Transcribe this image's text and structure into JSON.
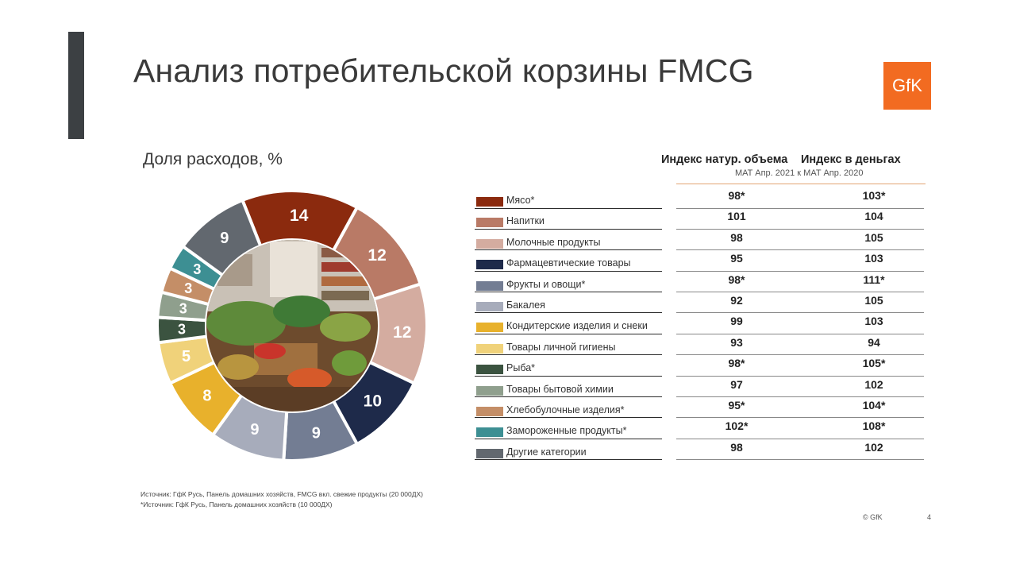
{
  "slide": {
    "title": "Анализ потребительской корзины FMCG",
    "logo_text": "GfK",
    "subtitle": "Доля расходов, %",
    "source_line1": "Источник: ГфК Русь, Панель домашних хозяйств, FMCG вкл. свежие продукты (20 000ДХ)",
    "source_line2": "*Источник: ГфК Русь, Панель домашних хозяйств (10 000ДХ)",
    "copyright": "© GfK",
    "page_number": "4",
    "accent_color": "#3c4043",
    "logo_color": "#f26b21"
  },
  "table_header": {
    "col1": "Индекс натур. объема",
    "col2": "Индекс в деньгах",
    "period": "MAT Апр. 2021 к MAT Апр. 2020"
  },
  "chart_data": {
    "type": "pie",
    "style": "donut",
    "title": "Доля расходов, %",
    "center_image": "photo-of-vegetables-and-grocery-shelves",
    "categories": [
      "Мясо*",
      "Напитки",
      "Молочные продукты",
      "Фармацевтические товары",
      "Фрукты и овощи*",
      "Бакалея",
      "Кондитерские изделия и снеки",
      "Товары личной гигиены",
      "Рыба*",
      "Товары бытовой химии",
      "Хлебобулочные изделия*",
      "Замороженные продукты*",
      "Другие категории"
    ],
    "values": [
      14,
      12,
      12,
      10,
      9,
      9,
      8,
      5,
      3,
      3,
      3,
      3,
      9
    ],
    "value_labels": [
      "14",
      "12",
      "12",
      "10",
      "9",
      "9",
      "8",
      "5",
      "3",
      "3",
      "3",
      "3",
      "9"
    ],
    "colors": [
      "#8b2a0e",
      "#b97a66",
      "#d4aca0",
      "#1e2a4a",
      "#737d93",
      "#a7acbb",
      "#e8b12c",
      "#f0d27a",
      "#3b5340",
      "#8f9f8d",
      "#c48e67",
      "#3d8f93",
      "#62686f"
    ],
    "index_volume": [
      "98*",
      "101",
      "98",
      "95",
      "98*",
      "92",
      "99",
      "93",
      "98*",
      "97",
      "95*",
      "102*",
      "98"
    ],
    "index_money": [
      "103*",
      "104",
      "105",
      "103",
      "111*",
      "105",
      "103",
      "94",
      "105*",
      "102",
      "104*",
      "108*",
      "102"
    ]
  }
}
